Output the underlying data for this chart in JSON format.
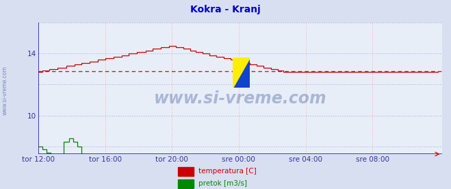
{
  "title": "Kokra - Kranj",
  "title_color": "#0000cc",
  "bg_color": "#d8dff0",
  "plot_bg_color": "#e8eef8",
  "grid_color_h": "#b0b0e0",
  "grid_color_v": "#ffb0b0",
  "axis_color": "#2222aa",
  "yticks": [
    10,
    14
  ],
  "ylim": [
    7.5,
    16.0
  ],
  "xlim": [
    0,
    287
  ],
  "xtick_positions": [
    0,
    48,
    96,
    144,
    192,
    240
  ],
  "xtick_labels": [
    "tor 12:00",
    "tor 16:00",
    "tor 20:00",
    "sre 00:00",
    "sre 04:00",
    "sre 08:00"
  ],
  "avg_line_y": 12.85,
  "avg_line_color": "#cc0000",
  "temp_color": "#cc0000",
  "pretok_color": "#008800",
  "watermark_color": "#1a3a8a",
  "watermark_alpha": 0.3,
  "legend_temp_color": "#cc0000",
  "legend_pretok_color": "#008800"
}
